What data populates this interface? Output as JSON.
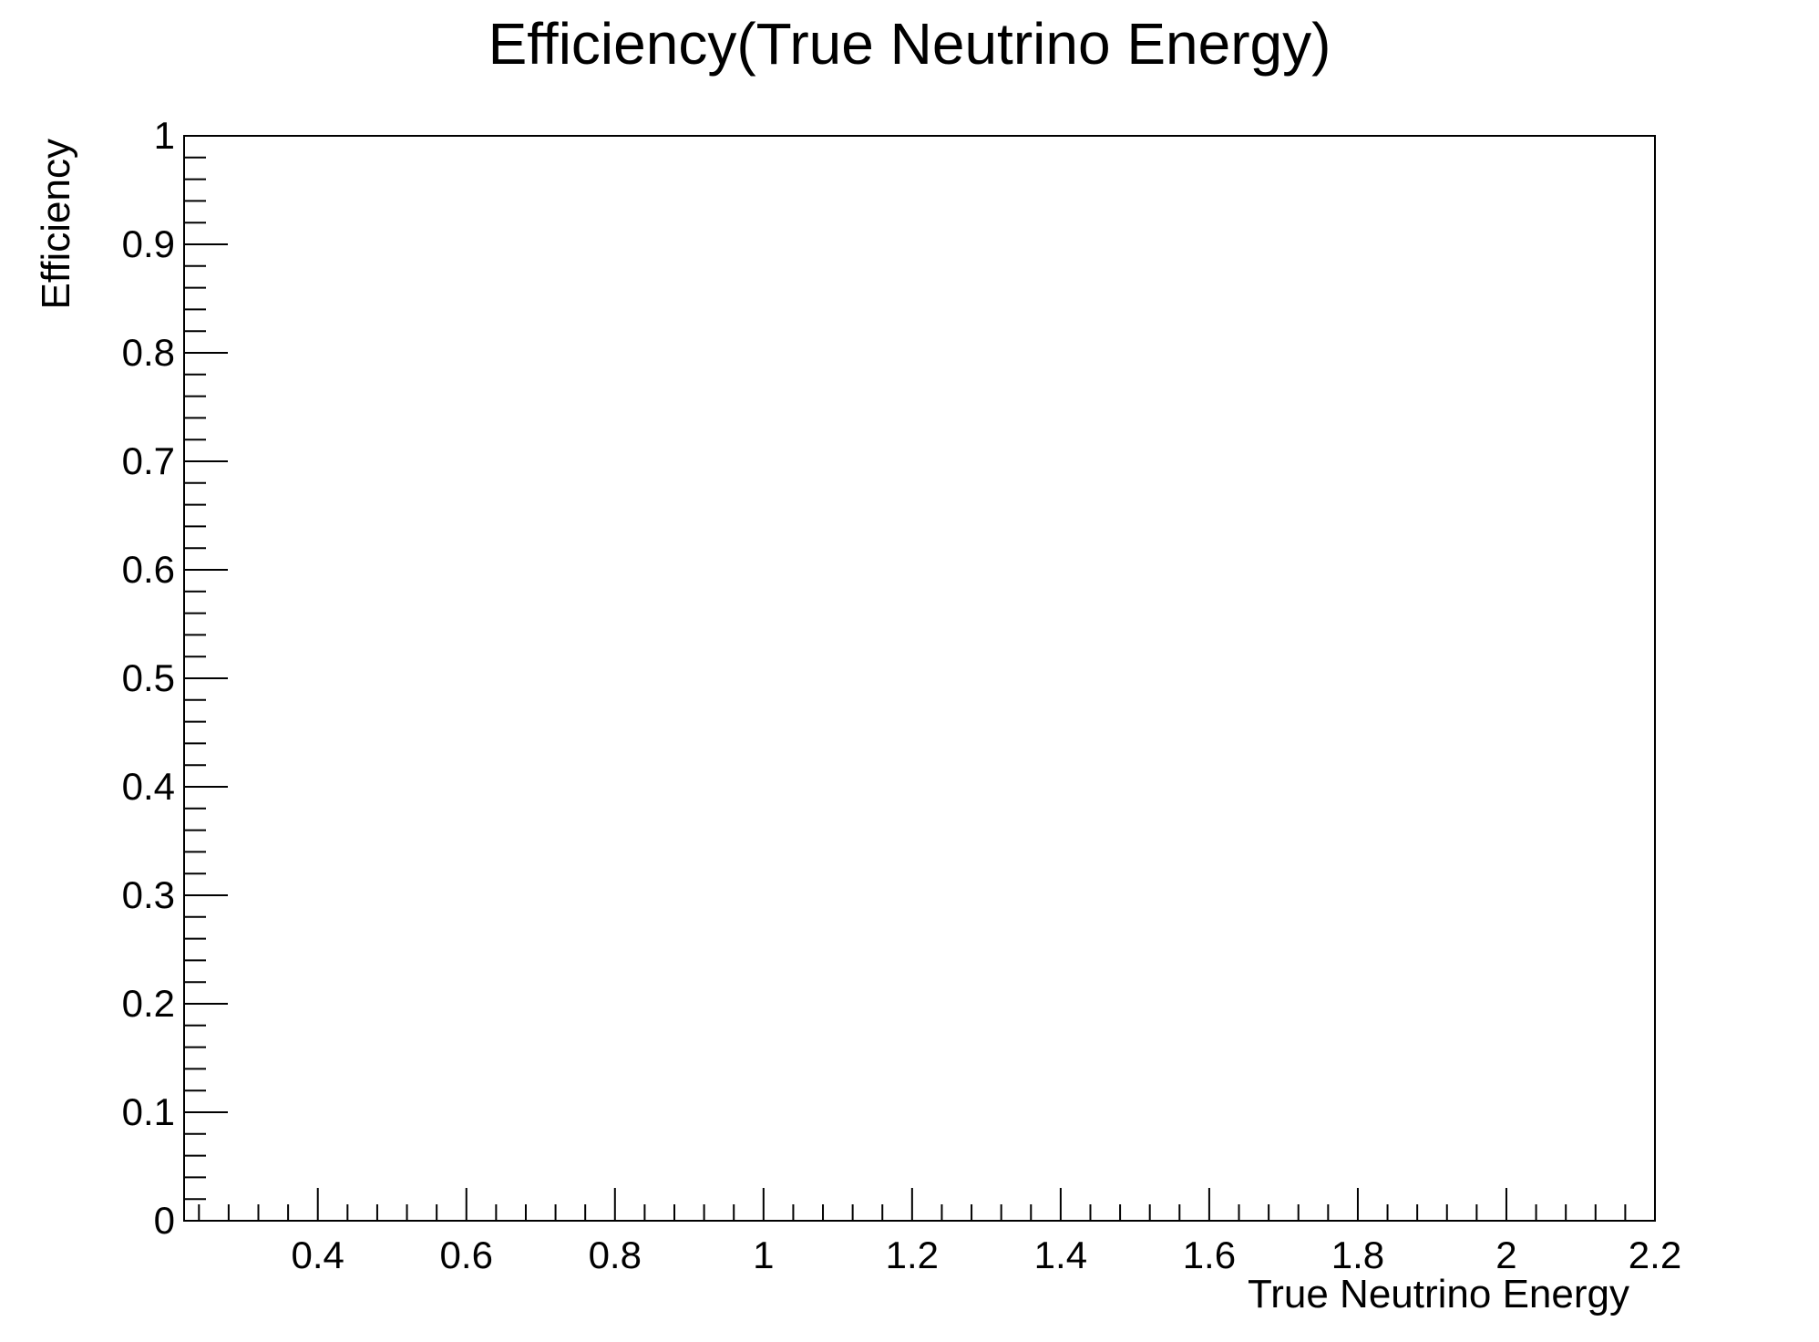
{
  "chart_data": {
    "type": "line",
    "title": "Efficiency(True Neutrino Energy)",
    "xlabel": "True Neutrino Energy",
    "ylabel": "Efficiency",
    "xlim": [
      0.22,
      2.2
    ],
    "ylim": [
      0,
      1
    ],
    "x_ticks": [
      0.4,
      0.6,
      0.8,
      1,
      1.2,
      1.4,
      1.6,
      1.8,
      2,
      2.2
    ],
    "x_tick_labels": [
      "0.4",
      "0.6",
      "0.8",
      "1",
      "1.2",
      "1.4",
      "1.6",
      "1.8",
      "2",
      "2.2"
    ],
    "y_ticks": [
      0,
      0.1,
      0.2,
      0.3,
      0.4,
      0.5,
      0.6,
      0.7,
      0.8,
      0.9,
      1
    ],
    "y_tick_labels": [
      "0",
      "0.1",
      "0.2",
      "0.3",
      "0.4",
      "0.5",
      "0.6",
      "0.7",
      "0.8",
      "0.9",
      "1"
    ],
    "grid": false,
    "series": []
  }
}
